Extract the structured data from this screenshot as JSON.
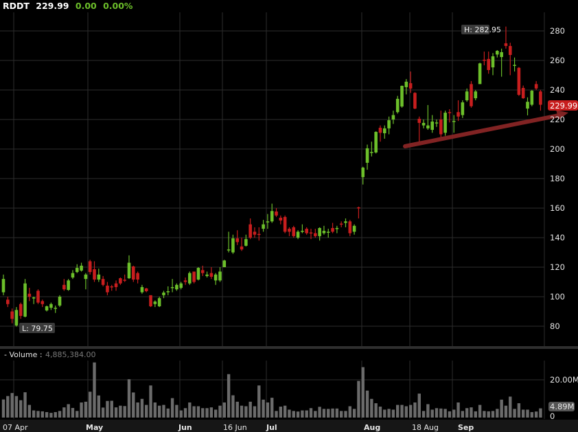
{
  "header": {
    "symbol": "RDDT",
    "last": "229.99",
    "change": "0.00",
    "change_pct": "0.00%"
  },
  "colors": {
    "up": "#6cbf2a",
    "down": "#c81e1e",
    "volume": "#6b6b6b",
    "grid": "#2e2e2e",
    "trendline": "#8c2626",
    "last_tag": "#c81e1e"
  },
  "price_pane": {
    "y_ticks": [
      "80",
      "100",
      "120",
      "140",
      "160",
      "180",
      "200",
      "220",
      "240",
      "260",
      "280"
    ],
    "high_label": "H: 282.95",
    "low_label": "L: 79.75",
    "last_price_tag": "229.99"
  },
  "volume_pane": {
    "title": "- Volume :",
    "value": "4,885,384.00",
    "y_ticks": [
      "20.00M",
      "0"
    ],
    "last_volume_tag": "4.89M"
  },
  "x_axis": {
    "labels": [
      {
        "text": "07 Apr",
        "bold": false
      },
      {
        "text": "May",
        "bold": true
      },
      {
        "text": "Jun",
        "bold": true
      },
      {
        "text": "16 Jun",
        "bold": false
      },
      {
        "text": "Jul",
        "bold": true
      },
      {
        "text": "Aug",
        "bold": true
      },
      {
        "text": "18 Aug",
        "bold": false
      },
      {
        "text": "Sep",
        "bold": true
      }
    ]
  },
  "chart_data": {
    "type": "candlestick",
    "symbol": "RDDT",
    "ylim": [
      70,
      290
    ],
    "volume_ylim_millions": [
      0,
      30
    ],
    "ohlc": [
      [
        103,
        115,
        101,
        112
      ],
      [
        98,
        100,
        93,
        95
      ],
      [
        90,
        92,
        82,
        85
      ],
      [
        80.5,
        93,
        79.75,
        91
      ],
      [
        95,
        96,
        85,
        87
      ],
      [
        86.5,
        112,
        86,
        109
      ],
      [
        102,
        106,
        97,
        100
      ],
      [
        99,
        100,
        95,
        99.5
      ],
      [
        104,
        105,
        95,
        96
      ],
      [
        97,
        98,
        93,
        95
      ],
      [
        90.7,
        94,
        90,
        93.5
      ],
      [
        92.5,
        96,
        91,
        95
      ],
      [
        92,
        94,
        89,
        92.5
      ],
      [
        94,
        101,
        93,
        100
      ],
      [
        108,
        112,
        104,
        105
      ],
      [
        104.6,
        112,
        104,
        111
      ],
      [
        113,
        118,
        112,
        116
      ],
      [
        116.7,
        122,
        116,
        119.5
      ],
      [
        117.7,
        123,
        117,
        121
      ],
      [
        112,
        116,
        105,
        115
      ],
      [
        124,
        125,
        115,
        116.7
      ],
      [
        118.6,
        124,
        110,
        111.6
      ],
      [
        111.6,
        119,
        110,
        115
      ],
      [
        112,
        114,
        107,
        108
      ],
      [
        107.5,
        110,
        101,
        103
      ],
      [
        107,
        108,
        104,
        106.5
      ],
      [
        109,
        111,
        104,
        106.5
      ],
      [
        112.5,
        113,
        108,
        109
      ],
      [
        111.5,
        115,
        110,
        111
      ],
      [
        112.5,
        128,
        112,
        123
      ],
      [
        120.5,
        121,
        110,
        111.6
      ],
      [
        116,
        117,
        109,
        111.6
      ],
      [
        103,
        108,
        102,
        106.5
      ],
      [
        105.6,
        106,
        103,
        103.7
      ],
      [
        101,
        101,
        93,
        93.5
      ],
      [
        95,
        97.5,
        93,
        96.7
      ],
      [
        93.5,
        100,
        93,
        99
      ],
      [
        101,
        104,
        99,
        102.8
      ],
      [
        103,
        107,
        101,
        103.7
      ],
      [
        106,
        112,
        103,
        106.5
      ],
      [
        105,
        109,
        104,
        108
      ],
      [
        106,
        110,
        105,
        109
      ],
      [
        111,
        113,
        108,
        110
      ],
      [
        109,
        117,
        108,
        116
      ],
      [
        117,
        117,
        109,
        110
      ],
      [
        111.6,
        120,
        111,
        119.5
      ],
      [
        118,
        121,
        114,
        116
      ],
      [
        114,
        117,
        113,
        115
      ],
      [
        116,
        120,
        112,
        113.5
      ],
      [
        111,
        116,
        108,
        115
      ],
      [
        111,
        120,
        110,
        117
      ],
      [
        120,
        125,
        120,
        124.5
      ],
      [
        131.5,
        144,
        130,
        132
      ],
      [
        130,
        142,
        129,
        139.5
      ],
      [
        139.5,
        145,
        135,
        137
      ],
      [
        134,
        140,
        131,
        132
      ],
      [
        134.5,
        142,
        134,
        139
      ],
      [
        149,
        153,
        139,
        140
      ],
      [
        144,
        147,
        140,
        142
      ],
      [
        142.5,
        147,
        138,
        142
      ],
      [
        146,
        152,
        144,
        149
      ],
      [
        150.5,
        156,
        146,
        151
      ],
      [
        151,
        163,
        150,
        158
      ],
      [
        157.7,
        160,
        154,
        155
      ],
      [
        153.5,
        155,
        149,
        151.6
      ],
      [
        154,
        155,
        143,
        144
      ],
      [
        146,
        147,
        141,
        144
      ],
      [
        147,
        148,
        140,
        141
      ],
      [
        140,
        145,
        139,
        144
      ],
      [
        144,
        149,
        143,
        144.6
      ],
      [
        146,
        147,
        142,
        143
      ],
      [
        143.5,
        146,
        139,
        143
      ],
      [
        143,
        146,
        140,
        141
      ],
      [
        141,
        147,
        138,
        146.5
      ],
      [
        143,
        148,
        142,
        144.6
      ],
      [
        143.5,
        146,
        140,
        144
      ],
      [
        146.5,
        150,
        143,
        144
      ],
      [
        146,
        148,
        143,
        146.5
      ],
      [
        149.5,
        151,
        147,
        149
      ],
      [
        150,
        153,
        147,
        151
      ],
      [
        151,
        152,
        141,
        143
      ],
      [
        144,
        149,
        142,
        148
      ],
      [
        160.5,
        161,
        153,
        160
      ],
      [
        181,
        188,
        176,
        187.4
      ],
      [
        190.7,
        203,
        186,
        200.5
      ],
      [
        197.7,
        205,
        195,
        198
      ],
      [
        197.7,
        212,
        197,
        211.6
      ],
      [
        214.4,
        216,
        205,
        211
      ],
      [
        210.7,
        216,
        207,
        214
      ],
      [
        214,
        222,
        210,
        219.5
      ],
      [
        220,
        226,
        217,
        223
      ],
      [
        225,
        236,
        224,
        234
      ],
      [
        228.8,
        243,
        228,
        242.8
      ],
      [
        241.9,
        247.4,
        237,
        245.6
      ],
      [
        244.6,
        252.5,
        238,
        241
      ],
      [
        238,
        238.5,
        227,
        227.4
      ],
      [
        220.5,
        222,
        204.6,
        217.7
      ],
      [
        216,
        220,
        214,
        217.7
      ],
      [
        214,
        229.8,
        213,
        216
      ],
      [
        213,
        223,
        211,
        218.6
      ],
      [
        217.7,
        220,
        215,
        218
      ],
      [
        220,
        226,
        208,
        210
      ],
      [
        211,
        226,
        209,
        224.6
      ],
      [
        225,
        227,
        218,
        224.6
      ],
      [
        218.5,
        223,
        211,
        219
      ],
      [
        225,
        233,
        219,
        222
      ],
      [
        223,
        233,
        221,
        231.6
      ],
      [
        233,
        241,
        232,
        239
      ],
      [
        244,
        246,
        228,
        229
      ],
      [
        234.4,
        240,
        233,
        239
      ],
      [
        244,
        258.5,
        244,
        258
      ],
      [
        260.5,
        266,
        256.7,
        260
      ],
      [
        261,
        266,
        251,
        253.5
      ],
      [
        255.3,
        265,
        250,
        262.8
      ],
      [
        264,
        267,
        262,
        266.5
      ],
      [
        262.3,
        268,
        249,
        265.6
      ],
      [
        271.6,
        282.95,
        268,
        269.8
      ],
      [
        269.8,
        272,
        250,
        263.7
      ],
      [
        256.5,
        262,
        252.5,
        257
      ],
      [
        255,
        255.5,
        236,
        236.7
      ],
      [
        241.4,
        243,
        234,
        234.4
      ],
      [
        227.4,
        235,
        222.8,
        232
      ],
      [
        230,
        240,
        229,
        239.5
      ],
      [
        244,
        246,
        240,
        241
      ],
      [
        239,
        240,
        226,
        229.99
      ]
    ],
    "volume_millions": [
      9.6,
      11.4,
      13,
      11.4,
      9.2,
      13.4,
      6.7,
      3.8,
      3.5,
      3.3,
      2.9,
      2.5,
      2.9,
      3.5,
      5.4,
      7.1,
      5.1,
      3.5,
      8,
      8.4,
      13.7,
      29.2,
      11.7,
      5.3,
      8.8,
      8.9,
      5.4,
      6.3,
      6.1,
      20.3,
      13.3,
      8,
      9.9,
      6.7,
      17,
      8,
      6.3,
      6.7,
      4.8,
      10.3,
      6.7,
      3.8,
      5,
      8,
      6,
      6,
      5,
      5,
      5.4,
      4.2,
      6.3,
      8,
      23,
      11.8,
      8.4,
      6.3,
      6,
      8.4,
      6,
      17,
      9.5,
      8,
      10.5,
      3.5,
      5.8,
      6.3,
      4.2,
      3.5,
      3.2,
      3.8,
      3.8,
      5,
      3.5,
      5.7,
      4.6,
      4.6,
      4.8,
      4.8,
      3.5,
      3.5,
      6,
      4.6,
      19.4,
      26.7,
      14.3,
      9.9,
      7.6,
      5.8,
      4.2,
      4.6,
      4.2,
      6.7,
      6.7,
      6,
      6.7,
      8,
      12.7,
      3.5,
      7.1,
      4.2,
      5,
      4.8,
      4.6,
      3.3,
      4.2,
      8,
      3.5,
      5,
      5.4,
      3.3,
      6.7,
      3.5,
      3.3,
      3.5,
      4.6,
      9.5,
      6.3,
      11.1,
      4.6,
      7.6,
      4.2,
      4.2,
      2.9,
      3.2,
      4.89
    ]
  }
}
